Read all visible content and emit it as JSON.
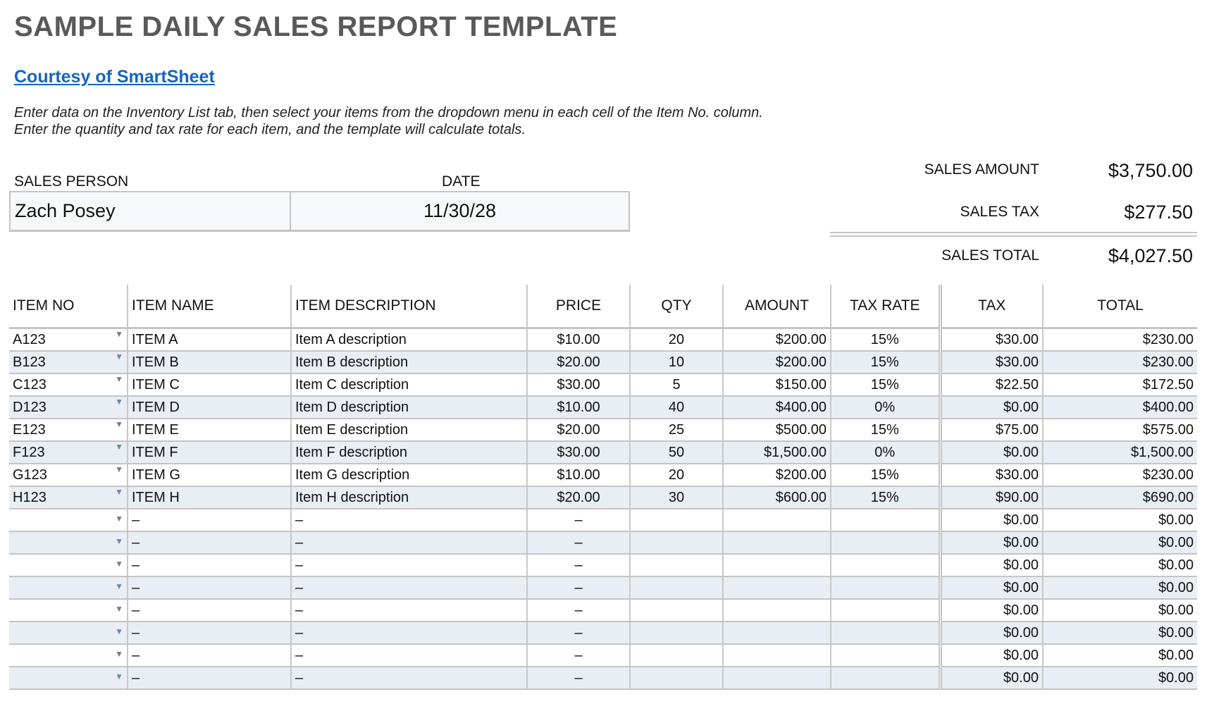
{
  "title": "SAMPLE DAILY SALES REPORT TEMPLATE",
  "link": "Courtesy of SmartSheet",
  "instructions": [
    "Enter data on the Inventory List tab, then select your items from the dropdown menu in each cell of the Item No. column.",
    "Enter the quantity and tax rate for each item, and the template will calculate totals."
  ],
  "info": {
    "sales_person_label": "SALES PERSON",
    "sales_person": "Zach Posey",
    "date_label": "DATE",
    "date": "11/30/28"
  },
  "summary": {
    "sales_amount_label": "SALES AMOUNT",
    "sales_amount": "$3,750.00",
    "sales_tax_label": "SALES TAX",
    "sales_tax": "$277.50",
    "sales_total_label": "SALES TOTAL",
    "sales_total": "$4,027.50"
  },
  "table": {
    "headers": [
      "ITEM NO",
      "ITEM NAME",
      "ITEM DESCRIPTION",
      "PRICE",
      "QTY",
      "AMOUNT",
      "TAX RATE",
      "TAX",
      "TOTAL"
    ],
    "dropdown_icon": "triangle-down",
    "rows": [
      [
        "A123",
        "ITEM A",
        "Item A description",
        "$10.00",
        "20",
        "$200.00",
        "15%",
        "$30.00",
        "$230.00"
      ],
      [
        "B123",
        "ITEM B",
        "Item B description",
        "$20.00",
        "10",
        "$200.00",
        "15%",
        "$30.00",
        "$230.00"
      ],
      [
        "C123",
        "ITEM C",
        "Item C description",
        "$30.00",
        "5",
        "$150.00",
        "15%",
        "$22.50",
        "$172.50"
      ],
      [
        "D123",
        "ITEM D",
        "Item D description",
        "$10.00",
        "40",
        "$400.00",
        "0%",
        "$0.00",
        "$400.00"
      ],
      [
        "E123",
        "ITEM E",
        "Item E description",
        "$20.00",
        "25",
        "$500.00",
        "15%",
        "$75.00",
        "$575.00"
      ],
      [
        "F123",
        "ITEM F",
        "Item F description",
        "$30.00",
        "50",
        "$1,500.00",
        "0%",
        "$0.00",
        "$1,500.00"
      ],
      [
        "G123",
        "ITEM G",
        "Item G description",
        "$10.00",
        "20",
        "$200.00",
        "15%",
        "$30.00",
        "$230.00"
      ],
      [
        "H123",
        "ITEM H",
        "Item H description",
        "$20.00",
        "30",
        "$600.00",
        "15%",
        "$90.00",
        "$690.00"
      ],
      [
        "",
        "–",
        "–",
        "–",
        "",
        "",
        "",
        "$0.00",
        "$0.00"
      ],
      [
        "",
        "–",
        "–",
        "–",
        "",
        "",
        "",
        "$0.00",
        "$0.00"
      ],
      [
        "",
        "–",
        "–",
        "–",
        "",
        "",
        "",
        "$0.00",
        "$0.00"
      ],
      [
        "",
        "–",
        "–",
        "–",
        "",
        "",
        "",
        "$0.00",
        "$0.00"
      ],
      [
        "",
        "–",
        "–",
        "–",
        "",
        "",
        "",
        "$0.00",
        "$0.00"
      ],
      [
        "",
        "–",
        "–",
        "–",
        "",
        "",
        "",
        "$0.00",
        "$0.00"
      ],
      [
        "",
        "–",
        "–",
        "–",
        "",
        "",
        "",
        "$0.00",
        "$0.00"
      ],
      [
        "",
        "–",
        "–",
        "–",
        "",
        "",
        "",
        "$0.00",
        "$0.00"
      ]
    ]
  }
}
